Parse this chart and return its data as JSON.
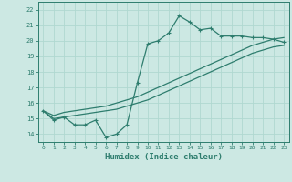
{
  "xlabel": "Humidex (Indice chaleur)",
  "ylabel": "",
  "bg_color": "#cce8e3",
  "line_color": "#2e7d6e",
  "grid_color": "#b0d8d0",
  "xlim": [
    -0.5,
    23.5
  ],
  "ylim": [
    13.5,
    22.5
  ],
  "xticks": [
    0,
    1,
    2,
    3,
    4,
    5,
    6,
    7,
    8,
    9,
    10,
    11,
    12,
    13,
    14,
    15,
    16,
    17,
    18,
    19,
    20,
    21,
    22,
    23
  ],
  "yticks": [
    14,
    15,
    16,
    17,
    18,
    19,
    20,
    21,
    22
  ],
  "main_line_x": [
    0,
    1,
    2,
    3,
    4,
    5,
    6,
    7,
    8,
    9,
    10,
    11,
    12,
    13,
    14,
    15,
    16,
    17,
    18,
    19,
    20,
    21,
    22,
    23
  ],
  "main_line_y": [
    15.5,
    14.9,
    15.1,
    14.6,
    14.6,
    14.9,
    13.8,
    14.0,
    14.6,
    17.3,
    19.8,
    20.0,
    20.5,
    21.6,
    21.2,
    20.7,
    20.8,
    20.3,
    20.3,
    20.3,
    20.2,
    20.2,
    20.1,
    19.9
  ],
  "upper_line_x": [
    0,
    1,
    2,
    3,
    4,
    5,
    6,
    7,
    8,
    9,
    10,
    11,
    12,
    13,
    14,
    15,
    16,
    17,
    18,
    19,
    20,
    21,
    22,
    23
  ],
  "upper_line_y": [
    15.5,
    15.2,
    15.4,
    15.5,
    15.6,
    15.7,
    15.8,
    16.0,
    16.2,
    16.4,
    16.7,
    17.0,
    17.3,
    17.6,
    17.9,
    18.2,
    18.5,
    18.8,
    19.1,
    19.4,
    19.7,
    19.9,
    20.1,
    20.2
  ],
  "lower_line_x": [
    0,
    1,
    2,
    3,
    4,
    5,
    6,
    7,
    8,
    9,
    10,
    11,
    12,
    13,
    14,
    15,
    16,
    17,
    18,
    19,
    20,
    21,
    22,
    23
  ],
  "lower_line_y": [
    15.5,
    15.0,
    15.1,
    15.2,
    15.3,
    15.4,
    15.5,
    15.6,
    15.8,
    16.0,
    16.2,
    16.5,
    16.8,
    17.1,
    17.4,
    17.7,
    18.0,
    18.3,
    18.6,
    18.9,
    19.2,
    19.4,
    19.6,
    19.7
  ]
}
